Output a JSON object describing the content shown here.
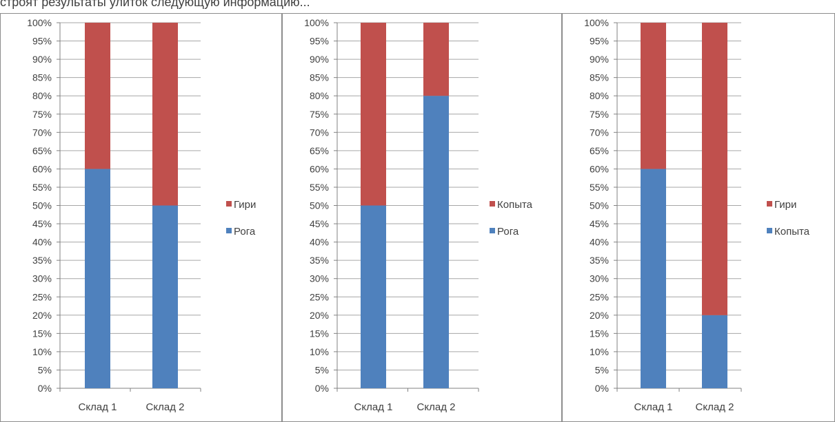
{
  "header_text": "строят результаты улиток следующую информацию...",
  "colors": {
    "series_blue": "#4f81bd",
    "series_red": "#c0504d",
    "grid": "#a6a6a6",
    "text": "#404040",
    "border": "#8c8c8c"
  },
  "chart_data": [
    {
      "type": "bar",
      "stacked": "percent",
      "categories": [
        "Склад 1",
        "Склад 2"
      ],
      "series": [
        {
          "name": "Рога",
          "values": [
            60,
            50
          ],
          "color": "#4f81bd"
        },
        {
          "name": "Гири",
          "values": [
            40,
            50
          ],
          "color": "#c0504d"
        }
      ],
      "ylim": [
        0,
        100
      ],
      "y_ticks": [
        "0%",
        "5%",
        "10%",
        "15%",
        "20%",
        "25%",
        "30%",
        "35%",
        "40%",
        "45%",
        "50%",
        "55%",
        "60%",
        "65%",
        "70%",
        "75%",
        "80%",
        "85%",
        "90%",
        "95%",
        "100%"
      ],
      "legend": [
        "Гири",
        "Рога"
      ],
      "legend_position": "right",
      "grid": true
    },
    {
      "type": "bar",
      "stacked": "percent",
      "categories": [
        "Склад 1",
        "Склад 2"
      ],
      "series": [
        {
          "name": "Рога",
          "values": [
            50,
            80
          ],
          "color": "#4f81bd"
        },
        {
          "name": "Копыта",
          "values": [
            50,
            20
          ],
          "color": "#c0504d"
        }
      ],
      "ylim": [
        0,
        100
      ],
      "y_ticks": [
        "0%",
        "5%",
        "10%",
        "15%",
        "20%",
        "25%",
        "30%",
        "35%",
        "40%",
        "45%",
        "50%",
        "55%",
        "60%",
        "65%",
        "70%",
        "75%",
        "80%",
        "85%",
        "90%",
        "95%",
        "100%"
      ],
      "legend": [
        "Копыта",
        "Рога"
      ],
      "legend_position": "right",
      "grid": true
    },
    {
      "type": "bar",
      "stacked": "percent",
      "categories": [
        "Склад 1",
        "Склад 2"
      ],
      "series": [
        {
          "name": "Копыта",
          "values": [
            60,
            20
          ],
          "color": "#4f81bd"
        },
        {
          "name": "Гири",
          "values": [
            40,
            80
          ],
          "color": "#c0504d"
        }
      ],
      "ylim": [
        0,
        100
      ],
      "y_ticks": [
        "0%",
        "5%",
        "10%",
        "15%",
        "20%",
        "25%",
        "30%",
        "35%",
        "40%",
        "45%",
        "50%",
        "55%",
        "60%",
        "65%",
        "70%",
        "75%",
        "80%",
        "85%",
        "90%",
        "95%",
        "100%"
      ],
      "legend": [
        "Гири",
        "Копыта"
      ],
      "legend_position": "right",
      "grid": true
    }
  ]
}
